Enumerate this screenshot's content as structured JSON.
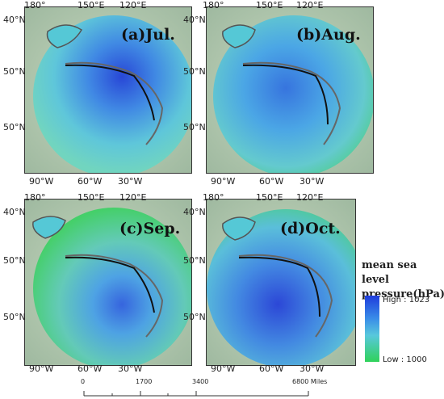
{
  "panels": [
    {
      "title": "(a)Jul.",
      "lon_labels_top": [
        "180°",
        "150°E",
        "120°E"
      ],
      "lat_labels_left": [
        "40°N",
        "50°N",
        "50°N"
      ],
      "lon_labels_bottom": [
        "90°W",
        "60°W",
        "30°W"
      ]
    },
    {
      "title": "(b)Aug.",
      "lon_labels_top": [
        "180°",
        "150°E",
        "120°E"
      ],
      "lat_labels_left": [
        "40°N",
        "50°N",
        "50°N"
      ],
      "lon_labels_bottom": [
        "90°W",
        "60°W",
        "30°W"
      ]
    },
    {
      "title": "(c)Sep.",
      "lon_labels_top": [
        "180°",
        "150°E",
        "120°E"
      ],
      "lat_labels_left": [
        "40°N",
        "50°N",
        "50°N"
      ],
      "lon_labels_bottom": [
        "90°W",
        "60°W",
        "30°W"
      ]
    },
    {
      "title": "(d)Oct.",
      "lon_labels_top": [
        "180°",
        "150°E",
        "120°E"
      ],
      "lat_labels_left": [
        "40°N",
        "50°N",
        "50°N"
      ],
      "lon_labels_bottom": [
        "90°W",
        "60°W",
        "30°W"
      ]
    }
  ],
  "legend": {
    "title_line1": "mean sea level",
    "title_line2": "pressure(hPa)",
    "high_label": "High : 1023",
    "low_label": "Low : 1000",
    "high_color": "#1e3cdc",
    "low_color": "#30d25a"
  },
  "scalebar": {
    "labels": [
      "0",
      "1700",
      "3400",
      "6800 Miles"
    ]
  }
}
